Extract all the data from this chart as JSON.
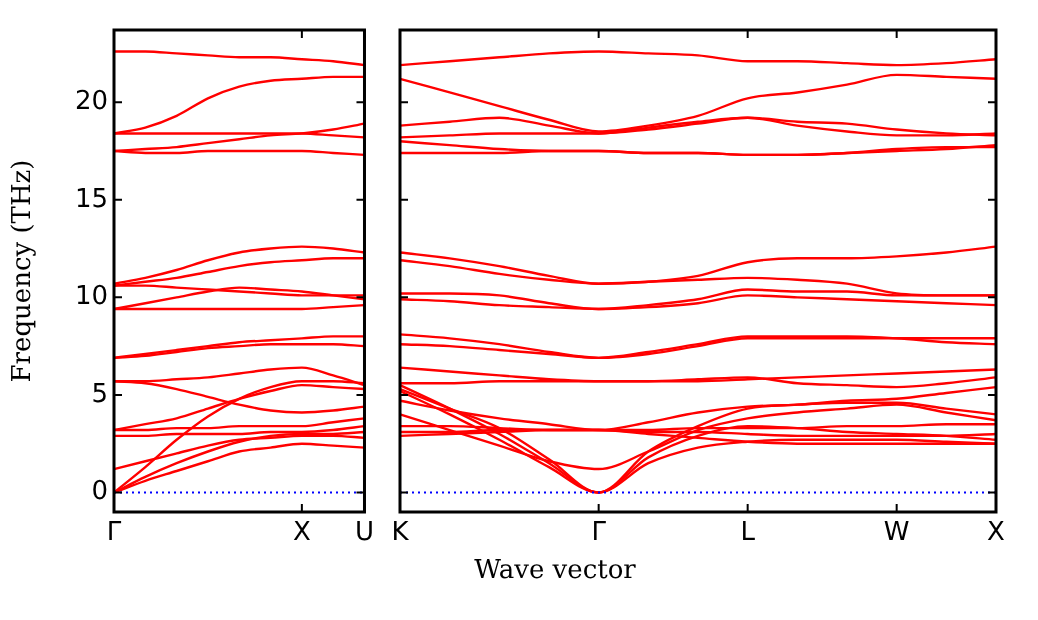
{
  "chart_data": [
    {
      "type": "line",
      "ylabel": "Frequency (THz)",
      "categories": [
        "Γ",
        null,
        null,
        null,
        null,
        null,
        "X",
        null,
        "U"
      ],
      "ylim": [
        -1,
        23.7
      ],
      "yticks": [
        0,
        5,
        10,
        15,
        20
      ],
      "grid": false,
      "legend": false,
      "marker": "none",
      "line_style": "solid",
      "ref_lines": [
        {
          "axis": "y",
          "value": 0,
          "color": "#0000ff",
          "line_style": "dotted"
        }
      ],
      "series": [
        {
          "color": "#ff0000",
          "values": [
            22.6,
            22.6,
            22.5,
            22.4,
            22.3,
            22.3,
            22.2,
            22.1,
            21.9
          ]
        },
        {
          "color": "#ff0000",
          "values": [
            18.4,
            18.7,
            19.3,
            20.2,
            20.8,
            21.1,
            21.2,
            21.3,
            21.3
          ]
        },
        {
          "color": "#ff0000",
          "values": [
            18.4,
            18.4,
            18.4,
            18.4,
            18.4,
            18.4,
            18.4,
            18.3,
            18.2
          ]
        },
        {
          "color": "#ff0000",
          "values": [
            17.5,
            17.6,
            17.7,
            17.9,
            18.1,
            18.3,
            18.4,
            18.6,
            18.9
          ]
        },
        {
          "color": "#ff0000",
          "values": [
            17.5,
            17.4,
            17.4,
            17.5,
            17.5,
            17.5,
            17.5,
            17.4,
            17.3
          ]
        },
        {
          "color": "#ff0000",
          "values": [
            10.7,
            11.0,
            11.4,
            11.9,
            12.3,
            12.5,
            12.6,
            12.5,
            12.3
          ]
        },
        {
          "color": "#ff0000",
          "values": [
            10.6,
            10.8,
            11.0,
            11.3,
            11.6,
            11.8,
            11.9,
            12.0,
            12.0
          ]
        },
        {
          "color": "#ff0000",
          "values": [
            10.6,
            10.6,
            10.5,
            10.4,
            10.3,
            10.2,
            10.1,
            10.1,
            10.1
          ]
        },
        {
          "color": "#ff0000",
          "values": [
            9.4,
            9.7,
            10.0,
            10.3,
            10.5,
            10.4,
            10.3,
            10.1,
            9.9
          ]
        },
        {
          "color": "#ff0000",
          "values": [
            9.4,
            9.4,
            9.4,
            9.4,
            9.4,
            9.4,
            9.4,
            9.5,
            9.6
          ]
        },
        {
          "color": "#ff0000",
          "values": [
            6.9,
            7.0,
            7.2,
            7.4,
            7.5,
            7.6,
            7.6,
            7.6,
            7.5
          ]
        },
        {
          "color": "#ff0000",
          "values": [
            6.9,
            7.1,
            7.3,
            7.5,
            7.7,
            7.8,
            7.9,
            8.0,
            8.0
          ]
        },
        {
          "color": "#ff0000",
          "values": [
            5.7,
            5.7,
            5.8,
            5.9,
            6.1,
            6.3,
            6.4,
            6.0,
            5.5
          ]
        },
        {
          "color": "#ff0000",
          "values": [
            5.7,
            5.6,
            5.3,
            4.9,
            4.5,
            4.2,
            4.1,
            4.2,
            4.4
          ]
        },
        {
          "color": "#ff0000",
          "values": [
            0,
            1.3,
            2.7,
            3.9,
            4.8,
            5.4,
            5.7,
            5.7,
            5.6
          ]
        },
        {
          "color": "#ff0000",
          "values": [
            3.2,
            3.5,
            3.8,
            4.3,
            4.8,
            5.2,
            5.5,
            5.4,
            5.3
          ]
        },
        {
          "color": "#ff0000",
          "values": [
            3.2,
            3.2,
            3.3,
            3.3,
            3.4,
            3.4,
            3.4,
            3.6,
            3.8
          ]
        },
        {
          "color": "#ff0000",
          "values": [
            2.9,
            2.9,
            3.0,
            3.0,
            3.0,
            3.1,
            3.1,
            3.2,
            3.4
          ]
        },
        {
          "color": "#ff0000",
          "values": [
            1.2,
            1.6,
            2.0,
            2.4,
            2.7,
            2.8,
            2.9,
            2.9,
            2.8
          ]
        },
        {
          "color": "#ff0000",
          "values": [
            0,
            0.8,
            1.5,
            2.1,
            2.6,
            2.9,
            3.0,
            3.0,
            3.1
          ]
        },
        {
          "color": "#ff0000",
          "values": [
            0,
            0.6,
            1.1,
            1.6,
            2.1,
            2.3,
            2.5,
            2.4,
            2.3
          ]
        }
      ]
    },
    {
      "type": "line",
      "xlabel": "Wave vector",
      "categories": [
        "K",
        null,
        null,
        null,
        "Γ",
        null,
        null,
        "L",
        null,
        null,
        "W",
        null,
        "X"
      ],
      "ylim": [
        -1,
        23.7
      ],
      "yticks": [
        {
          "value": 0,
          "label": null
        },
        {
          "value": 5,
          "label": null
        },
        {
          "value": 10,
          "label": null
        },
        {
          "value": 15,
          "label": null
        },
        {
          "value": 20,
          "label": null
        }
      ],
      "tick_labels": "x",
      "grid": false,
      "legend": false,
      "marker": "none",
      "line_style": "solid",
      "ref_lines": [
        {
          "axis": "y",
          "value": 0,
          "color": "#0000ff",
          "line_style": "dotted"
        }
      ],
      "series": [
        {
          "color": "#ff0000",
          "values": [
            21.9,
            22.1,
            22.3,
            22.5,
            22.6,
            22.5,
            22.4,
            22.1,
            22.1,
            22.0,
            21.9,
            22.0,
            22.2
          ]
        },
        {
          "color": "#ff0000",
          "values": [
            21.2,
            20.5,
            19.8,
            19.1,
            18.5,
            18.8,
            19.3,
            20.2,
            20.5,
            20.9,
            21.4,
            21.3,
            21.2
          ]
        },
        {
          "color": "#ff0000",
          "values": [
            18.8,
            19.0,
            19.2,
            18.8,
            18.4,
            18.6,
            18.9,
            19.2,
            19.0,
            18.9,
            18.6,
            18.4,
            18.3
          ]
        },
        {
          "color": "#ff0000",
          "values": [
            18.2,
            18.3,
            18.4,
            18.4,
            18.4,
            18.7,
            19.0,
            19.2,
            18.8,
            18.5,
            18.3,
            18.3,
            18.4
          ]
        },
        {
          "color": "#ff0000",
          "values": [
            18.0,
            17.8,
            17.6,
            17.5,
            17.5,
            17.4,
            17.4,
            17.3,
            17.3,
            17.4,
            17.6,
            17.7,
            17.7
          ]
        },
        {
          "color": "#ff0000",
          "values": [
            17.4,
            17.4,
            17.4,
            17.5,
            17.5,
            17.4,
            17.4,
            17.3,
            17.3,
            17.4,
            17.5,
            17.6,
            17.8
          ]
        },
        {
          "color": "#ff0000",
          "values": [
            12.3,
            12.0,
            11.6,
            11.1,
            10.7,
            10.8,
            11.1,
            11.8,
            12.0,
            12.0,
            12.1,
            12.3,
            12.6
          ]
        },
        {
          "color": "#ff0000",
          "values": [
            11.9,
            11.6,
            11.2,
            10.9,
            10.7,
            10.8,
            10.9,
            11.0,
            10.9,
            10.7,
            10.2,
            10.1,
            10.1
          ]
        },
        {
          "color": "#ff0000",
          "values": [
            10.2,
            10.2,
            10.1,
            9.7,
            9.4,
            9.6,
            9.9,
            10.4,
            10.3,
            10.3,
            10.1,
            10.1,
            10.1
          ]
        },
        {
          "color": "#ff0000",
          "values": [
            9.9,
            9.8,
            9.6,
            9.5,
            9.4,
            9.5,
            9.7,
            10.1,
            10.0,
            9.9,
            9.8,
            9.7,
            9.6
          ]
        },
        {
          "color": "#ff0000",
          "values": [
            8.1,
            7.9,
            7.6,
            7.2,
            6.9,
            7.2,
            7.6,
            8.0,
            8.0,
            8.0,
            7.9,
            7.7,
            7.6
          ]
        },
        {
          "color": "#ff0000",
          "values": [
            7.6,
            7.5,
            7.3,
            7.1,
            6.9,
            7.1,
            7.5,
            7.9,
            7.9,
            7.9,
            7.9,
            7.9,
            7.9
          ]
        },
        {
          "color": "#ff0000",
          "values": [
            5.6,
            5.6,
            5.7,
            5.7,
            5.7,
            5.7,
            5.7,
            5.8,
            5.9,
            6.0,
            6.1,
            6.2,
            6.3
          ]
        },
        {
          "color": "#ff0000",
          "values": [
            6.4,
            6.2,
            6.0,
            5.8,
            5.7,
            5.7,
            5.8,
            5.9,
            5.6,
            5.5,
            5.4,
            5.6,
            5.9
          ]
        },
        {
          "color": "#ff0000",
          "values": [
            5.5,
            4.3,
            3.0,
            1.5,
            0,
            1.5,
            2.3,
            2.6,
            2.7,
            2.7,
            2.7,
            2.6,
            2.5
          ]
        },
        {
          "color": "#ff0000",
          "values": [
            5.2,
            4.0,
            2.7,
            1.3,
            0,
            1.8,
            2.9,
            3.4,
            3.3,
            3.1,
            3.0,
            2.9,
            2.7
          ]
        },
        {
          "color": "#ff0000",
          "values": [
            5.3,
            4.3,
            3.3,
            1.7,
            0,
            2.1,
            3.4,
            4.3,
            4.5,
            4.6,
            4.6,
            4.3,
            4.0
          ]
        },
        {
          "color": "#ff0000",
          "values": [
            4.0,
            3.2,
            2.4,
            1.6,
            1.2,
            2.1,
            3.2,
            3.8,
            4.1,
            4.3,
            4.5,
            4.1,
            3.7
          ]
        },
        {
          "color": "#ff0000",
          "values": [
            3.4,
            3.4,
            3.3,
            3.2,
            3.2,
            3.1,
            3.1,
            3.0,
            2.9,
            2.9,
            2.9,
            2.9,
            3.0
          ]
        },
        {
          "color": "#ff0000",
          "values": [
            2.9,
            3.0,
            3.1,
            3.2,
            3.2,
            3.0,
            2.8,
            2.6,
            2.5,
            2.5,
            2.5,
            2.5,
            2.5
          ]
        },
        {
          "color": "#ff0000",
          "values": [
            4.7,
            4.2,
            3.8,
            3.5,
            3.2,
            3.6,
            4.1,
            4.4,
            4.5,
            4.7,
            4.8,
            5.1,
            5.4
          ]
        },
        {
          "color": "#ff0000",
          "values": [
            3.1,
            3.1,
            3.2,
            3.2,
            3.2,
            3.2,
            3.3,
            3.3,
            3.3,
            3.4,
            3.4,
            3.5,
            3.5
          ]
        }
      ]
    }
  ]
}
